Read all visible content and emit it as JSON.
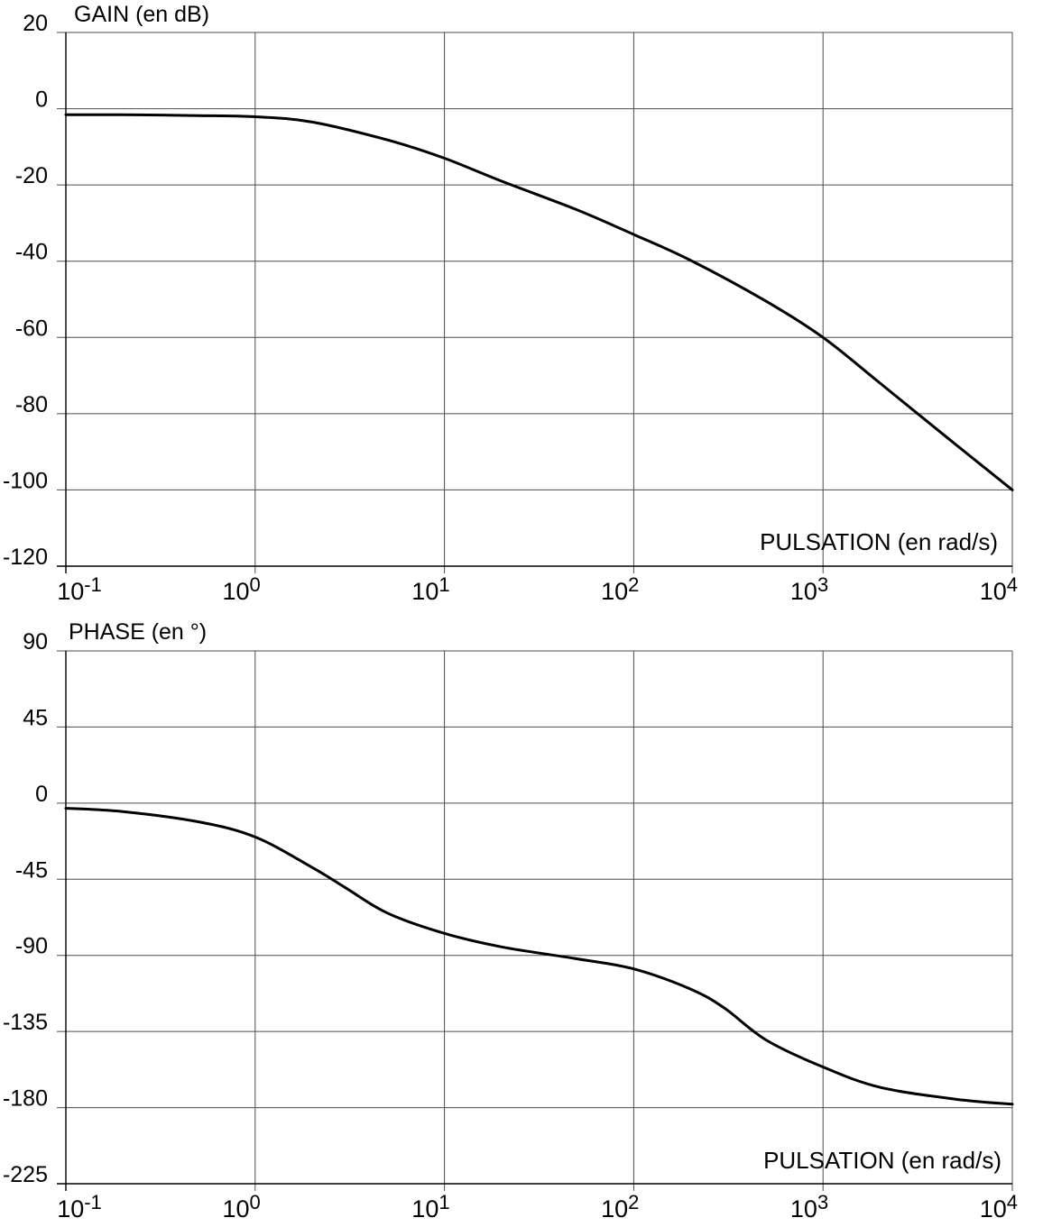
{
  "chart_data": [
    {
      "type": "line",
      "title": "GAIN (en dB)",
      "xlabel": "PULSATION (en rad/s)",
      "x_scale": "log",
      "xlim": [
        0.1,
        10000
      ],
      "ylim": [
        -120,
        20
      ],
      "grid": true,
      "x_ticks": [
        {
          "base": "10",
          "exp": "-1"
        },
        {
          "base": "10",
          "exp": "0"
        },
        {
          "base": "10",
          "exp": "1"
        },
        {
          "base": "10",
          "exp": "2"
        },
        {
          "base": "10",
          "exp": "3"
        },
        {
          "base": "10",
          "exp": "4"
        }
      ],
      "y_ticks": [
        "20",
        "0",
        "-20",
        "-40",
        "-60",
        "-80",
        "-100",
        "-120"
      ],
      "series": [
        {
          "x": [
            0.1,
            0.2,
            0.5,
            1,
            2,
            5,
            10,
            20,
            50,
            100,
            200,
            500,
            1000,
            2000,
            5000,
            10000
          ],
          "y": [
            -1.6,
            -1.6,
            -1.8,
            -2.1,
            -3.5,
            -8.2,
            -13.0,
            -19.0,
            -26.5,
            -33.0,
            -39.8,
            -50.5,
            -60.0,
            -72.0,
            -88.0,
            -100.0
          ]
        }
      ]
    },
    {
      "type": "line",
      "title": "PHASE (en °)",
      "xlabel": "PULSATION (en rad/s)",
      "x_scale": "log",
      "xlim": [
        0.1,
        10000
      ],
      "ylim": [
        -225,
        90
      ],
      "grid": true,
      "x_ticks": [
        {
          "base": "10",
          "exp": "-1"
        },
        {
          "base": "10",
          "exp": "0"
        },
        {
          "base": "10",
          "exp": "1"
        },
        {
          "base": "10",
          "exp": "2"
        },
        {
          "base": "10",
          "exp": "3"
        },
        {
          "base": "10",
          "exp": "4"
        }
      ],
      "y_ticks": [
        "90",
        "45",
        "0",
        "-45",
        "-90",
        "-135",
        "-180",
        "-225"
      ],
      "series": [
        {
          "x": [
            0.1,
            0.2,
            0.5,
            1,
            2,
            3,
            5,
            10,
            20,
            50,
            100,
            200,
            300,
            500,
            1000,
            2000,
            5000,
            10000
          ],
          "y": [
            -3,
            -5,
            -11,
            -20,
            -38,
            -50,
            -65,
            -77,
            -85,
            -92,
            -98,
            -110,
            -121,
            -140,
            -156,
            -168,
            -175,
            -178
          ]
        }
      ]
    }
  ]
}
